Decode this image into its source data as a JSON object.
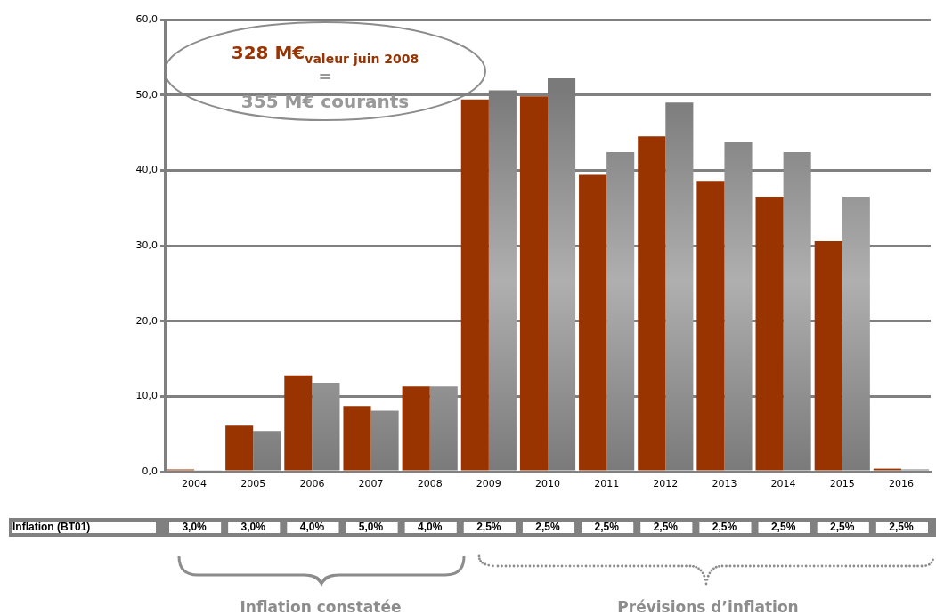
{
  "chart_data": {
    "type": "bar",
    "categories": [
      "2004",
      "2005",
      "2006",
      "2007",
      "2008",
      "2009",
      "2010",
      "2011",
      "2012",
      "2013",
      "2014",
      "2015",
      "2016"
    ],
    "series": [
      {
        "color": "#993300",
        "values": [
          0.3,
          6.1,
          12.8,
          8.7,
          11.3,
          49.4,
          49.8,
          39.4,
          44.5,
          38.6,
          36.5,
          30.6,
          0.4
        ]
      },
      {
        "color": "#7a7a7a",
        "values": [
          0.2,
          5.4,
          11.8,
          8.1,
          11.3,
          50.6,
          52.2,
          42.4,
          49.0,
          43.7,
          42.4,
          36.5,
          0.3
        ]
      }
    ],
    "ylim": [
      0,
      60
    ],
    "yticks": [
      {
        "value": 0,
        "label": "0,0"
      },
      {
        "value": 10,
        "label": "10,0"
      },
      {
        "value": 20,
        "label": "20,0"
      },
      {
        "value": 30,
        "label": "30,0"
      },
      {
        "value": 40,
        "label": "40,0"
      },
      {
        "value": 50,
        "label": "50,0"
      },
      {
        "value": 60,
        "label": "60,0"
      }
    ],
    "grid": "y",
    "legend": false,
    "annotations": [
      "328 M€$_{valeur juin 2008}$",
      "=",
      "355 M€ courants",
      "Inflation (BT01)",
      "3,0%",
      "3,0%",
      "4,0%",
      "5,0%",
      "4,0%",
      "2,5%",
      "2,5%",
      "2,5%",
      "2,5%",
      "2,5%",
      "2,5%",
      "2,5%",
      "2,5%",
      "Inflation constatée",
      "Prévisions d’inflation"
    ]
  }
}
